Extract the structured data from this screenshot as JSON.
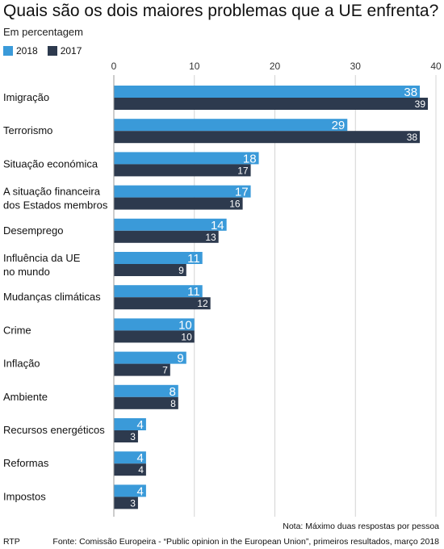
{
  "title": "Quais são os dois maiores problemas que a UE enfrenta?",
  "subtitle": "Em percentagem",
  "legend": [
    {
      "label": "2018",
      "color": "#3a9ad9"
    },
    {
      "label": "2017",
      "color": "#2d3a4e"
    }
  ],
  "note": "Nota: Máximo duas respostas por pessoa",
  "footer": {
    "left": "RTP",
    "right": "Fonte: Comissão Europeira - “Public opinion in the European Union”, primeiros resultados, março 2018"
  },
  "chart_data": {
    "type": "bar",
    "orientation": "horizontal",
    "title": "Quais são os dois maiores problemas que a UE enfrenta?",
    "subtitle": "Em percentagem",
    "xlim": [
      0,
      40
    ],
    "ticks": [
      0,
      10,
      20,
      30,
      40
    ],
    "grid": true,
    "legend_position": "top-left",
    "categories": [
      "Imigração",
      "Terrorismo",
      "Situação económica",
      "A situação financeira\ndos Estados membros",
      "Desemprego",
      "Influência da UE\nno mundo",
      "Mudanças climáticas",
      "Crime",
      "Inflação",
      "Ambiente",
      "Recursos energéticos",
      "Reformas",
      "Impostos"
    ],
    "series": [
      {
        "name": "2018",
        "color": "#3a9ad9",
        "values": [
          38,
          29,
          18,
          17,
          14,
          11,
          11,
          10,
          9,
          8,
          4,
          4,
          4
        ]
      },
      {
        "name": "2017",
        "color": "#2d3a4e",
        "values": [
          39,
          38,
          17,
          16,
          13,
          9,
          12,
          10,
          7,
          8,
          3,
          4,
          3
        ]
      }
    ]
  }
}
